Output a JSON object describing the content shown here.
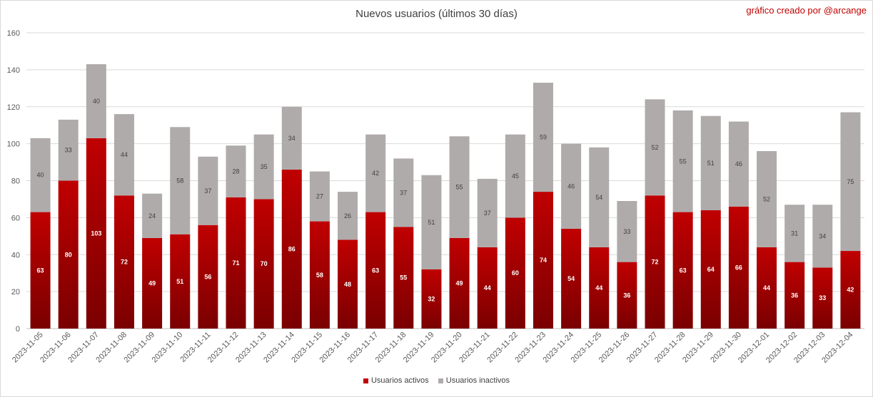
{
  "chart_data": {
    "type": "bar",
    "stacked": true,
    "title": "Nuevos usuarios (últimos 30 días)",
    "credit": "gráfico creado por @arcange",
    "ylim": [
      0,
      160
    ],
    "yticks": [
      0,
      20,
      40,
      60,
      80,
      100,
      120,
      140,
      160
    ],
    "grid": true,
    "legend_position": "bottom",
    "categories": [
      "2023-11-05",
      "2023-11-06",
      "2023-11-07",
      "2023-11-08",
      "2023-11-09",
      "2023-11-10",
      "2023-11-11",
      "2023-11-12",
      "2023-11-13",
      "2023-11-14",
      "2023-11-15",
      "2023-11-16",
      "2023-11-17",
      "2023-11-18",
      "2023-11-19",
      "2023-11-20",
      "2023-11-21",
      "2023-11-22",
      "2023-11-23",
      "2023-11-24",
      "2023-11-25",
      "2023-11-26",
      "2023-11-27",
      "2023-11-28",
      "2023-11-29",
      "2023-11-30",
      "2023-12-01",
      "2023-12-02",
      "2023-12-03",
      "2023-12-04"
    ],
    "series": [
      {
        "name": "Usuarios activos",
        "color": "#c00000",
        "color_dark": "#7a0000",
        "values": [
          63,
          80,
          103,
          72,
          49,
          51,
          56,
          71,
          70,
          86,
          58,
          48,
          63,
          55,
          32,
          49,
          44,
          60,
          74,
          54,
          44,
          36,
          72,
          63,
          64,
          66,
          44,
          36,
          33,
          42
        ]
      },
      {
        "name": "Usuarios inactivos",
        "color": "#b0abab",
        "values": [
          40,
          33,
          40,
          44,
          24,
          58,
          37,
          28,
          35,
          34,
          27,
          26,
          42,
          37,
          51,
          55,
          37,
          45,
          59,
          46,
          54,
          33,
          52,
          55,
          51,
          46,
          52,
          31,
          34,
          75
        ]
      }
    ]
  }
}
